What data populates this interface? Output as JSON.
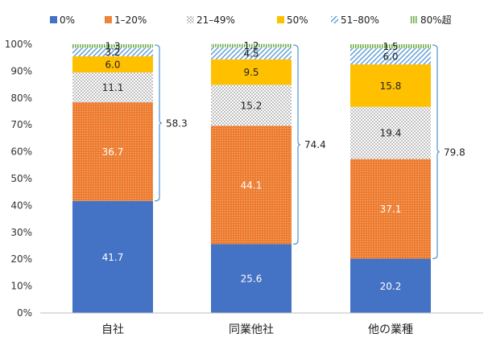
{
  "chart_data": {
    "type": "bar",
    "stacked": true,
    "categories": [
      "自社",
      "同業他社",
      "他の業種"
    ],
    "ylim": [
      0,
      100
    ],
    "yticks": [
      "0%",
      "10%",
      "20%",
      "30%",
      "40%",
      "50%",
      "60%",
      "70%",
      "80%",
      "90%",
      "100%"
    ],
    "grid": false,
    "legend_position": "top",
    "series": [
      {
        "name": "0%",
        "values": [
          41.7,
          25.6,
          20.2
        ],
        "color": "#4472C4",
        "pattern": "solid",
        "label_color": "#ffffff"
      },
      {
        "name": "1–20%",
        "values": [
          36.7,
          44.1,
          37.1
        ],
        "color": "#ED7D31",
        "pattern": "dots",
        "label_color": "#ffffff"
      },
      {
        "name": "21–49%",
        "values": [
          11.1,
          15.2,
          19.4
        ],
        "color": "#D0D0D0",
        "pattern": "check",
        "label_color": "#222222"
      },
      {
        "name": "50%",
        "values": [
          6.0,
          9.5,
          15.8
        ],
        "color": "#FFC000",
        "pattern": "solid",
        "label_color": "#222222"
      },
      {
        "name": "51–80%",
        "values": [
          3.2,
          4.5,
          6.0
        ],
        "color": "#9DC3E6",
        "pattern": "diag",
        "label_color": "#222222"
      },
      {
        "name": "80%超",
        "values": [
          1.3,
          1.2,
          1.5
        ],
        "color": "#70AD47",
        "pattern": "vlines",
        "label_color": "#222222"
      }
    ],
    "bracket_totals": [
      "58.3",
      "74.4",
      "79.8"
    ]
  }
}
